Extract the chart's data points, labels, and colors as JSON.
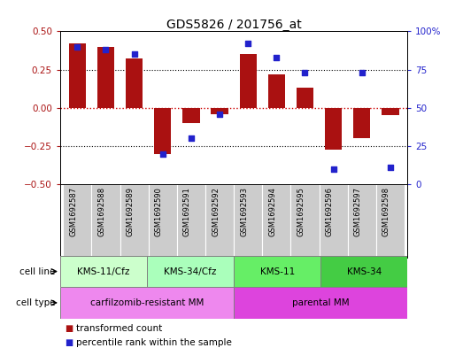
{
  "title": "GDS5826 / 201756_at",
  "samples": [
    "GSM1692587",
    "GSM1692588",
    "GSM1692589",
    "GSM1692590",
    "GSM1692591",
    "GSM1692592",
    "GSM1692593",
    "GSM1692594",
    "GSM1692595",
    "GSM1692596",
    "GSM1692597",
    "GSM1692598"
  ],
  "transformed_count": [
    0.42,
    0.4,
    0.32,
    -0.3,
    -0.1,
    -0.04,
    0.35,
    0.22,
    0.13,
    -0.27,
    -0.2,
    -0.05
  ],
  "percentile_rank": [
    90,
    88,
    85,
    20,
    30,
    46,
    92,
    83,
    73,
    10,
    73,
    11
  ],
  "bar_color": "#aa1111",
  "dot_color": "#2222cc",
  "ylim_left": [
    -0.5,
    0.5
  ],
  "ylim_right": [
    0,
    100
  ],
  "yticks_left": [
    -0.5,
    -0.25,
    0.0,
    0.25,
    0.5
  ],
  "yticks_right": [
    0,
    25,
    50,
    75,
    100
  ],
  "cell_line_groups": [
    {
      "label": "KMS-11/Cfz",
      "start": 0,
      "end": 3,
      "color": "#ccffcc"
    },
    {
      "label": "KMS-34/Cfz",
      "start": 3,
      "end": 6,
      "color": "#aaeebb"
    },
    {
      "label": "KMS-11",
      "start": 6,
      "end": 9,
      "color": "#66dd66"
    },
    {
      "label": "KMS-34",
      "start": 9,
      "end": 12,
      "color": "#55cc55"
    }
  ],
  "cell_type_groups": [
    {
      "label": "carfilzomib-resistant MM",
      "start": 0,
      "end": 6,
      "color": "#ee88ee"
    },
    {
      "label": "parental MM",
      "start": 6,
      "end": 12,
      "color": "#dd44dd"
    }
  ],
  "sample_bg_color": "#cccccc",
  "legend_items": [
    {
      "label": "transformed count",
      "color": "#aa1111"
    },
    {
      "label": "percentile rank within the sample",
      "color": "#2222cc"
    }
  ]
}
